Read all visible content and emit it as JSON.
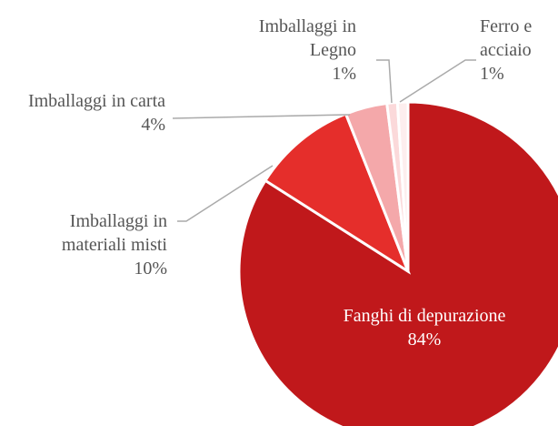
{
  "chart_data": {
    "type": "pie",
    "categories": [
      "Fanghi di depurazione",
      "Imballaggi in materiali misti",
      "Imballaggi in carta",
      "Imballaggi in Legno",
      "Ferro e acciaio"
    ],
    "values": [
      84,
      10,
      4,
      1,
      1
    ],
    "value_labels": [
      "84%",
      "10%",
      "4%",
      "1%",
      "1%"
    ],
    "colors": [
      "#c0181b",
      "#e52e2b",
      "#f4a8aa",
      "#fbd9da",
      "#fdeeee"
    ]
  }
}
